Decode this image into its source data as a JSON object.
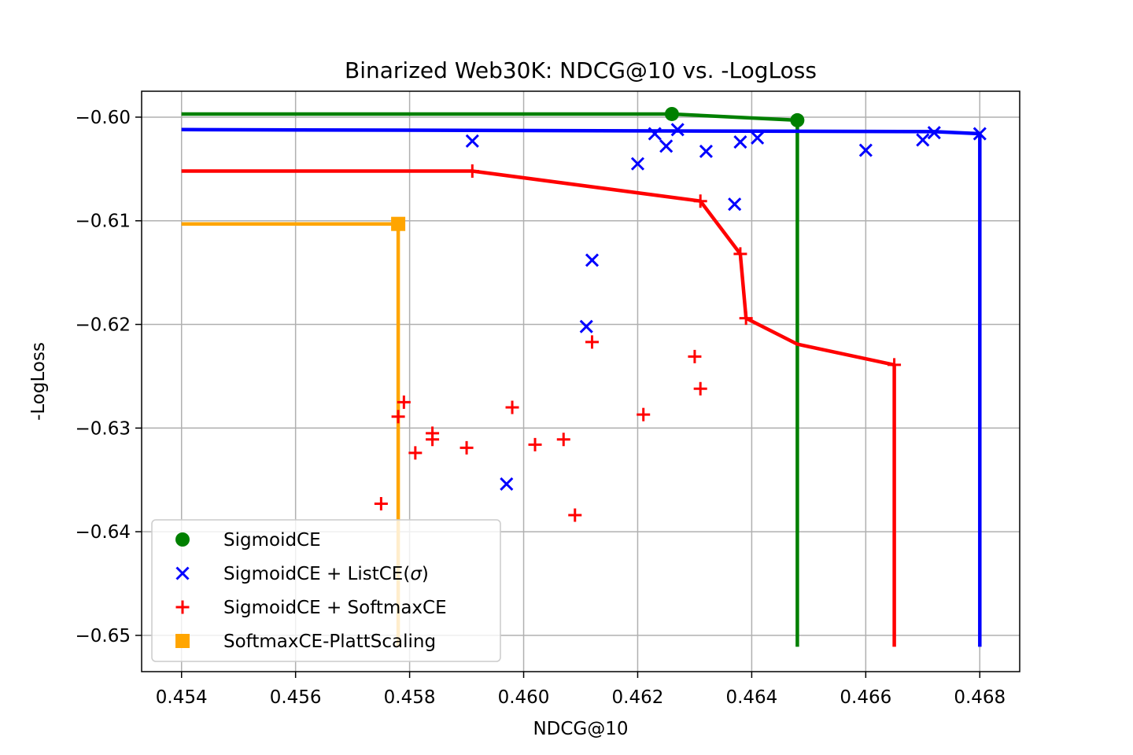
{
  "chart_data": {
    "type": "scatter",
    "title": "Binarized Web30K: NDCG@10 vs. -LogLoss",
    "xlabel": "NDCG@10",
    "ylabel": "-LogLoss",
    "xlim": [
      0.4533,
      0.4687
    ],
    "ylim": [
      -0.6535,
      -0.5975
    ],
    "x_ticks": [
      0.454,
      0.456,
      0.458,
      0.46,
      0.462,
      0.464,
      0.466,
      0.468
    ],
    "x_tick_labels": [
      "0.454",
      "0.456",
      "0.458",
      "0.460",
      "0.462",
      "0.464",
      "0.466",
      "0.468"
    ],
    "y_ticks": [
      -0.6,
      -0.61,
      -0.62,
      -0.63,
      -0.64,
      -0.65
    ],
    "y_tick_labels": [
      "−0.60",
      "−0.61",
      "−0.62",
      "−0.63",
      "−0.64",
      "−0.65"
    ],
    "grid": true,
    "legend_position": "lower-left",
    "series": [
      {
        "name": "SigmoidCE",
        "marker": "circle",
        "color": "#008000",
        "points": [
          [
            0.4626,
            -0.5997
          ],
          [
            0.4648,
            -0.6003
          ]
        ],
        "frontier": [
          [
            0.454,
            -0.5997
          ],
          [
            0.4626,
            -0.5997
          ],
          [
            0.4648,
            -0.6003
          ],
          [
            0.4648,
            -0.6511
          ]
        ]
      },
      {
        "name_prefix": "SigmoidCE + ListCE(",
        "name_symbol": "σ",
        "name_suffix": ")",
        "marker": "x",
        "color": "#0000ff",
        "points": [
          [
            0.4591,
            -0.6023
          ],
          [
            0.462,
            -0.6045
          ],
          [
            0.4623,
            -0.6016
          ],
          [
            0.4625,
            -0.6028
          ],
          [
            0.4627,
            -0.6012
          ],
          [
            0.4632,
            -0.6033
          ],
          [
            0.4637,
            -0.6084
          ],
          [
            0.4638,
            -0.6024
          ],
          [
            0.4641,
            -0.602
          ],
          [
            0.4612,
            -0.6138
          ],
          [
            0.4611,
            -0.6202
          ],
          [
            0.4597,
            -0.6354
          ],
          [
            0.466,
            -0.6032
          ],
          [
            0.467,
            -0.6022
          ],
          [
            0.4672,
            -0.6015
          ],
          [
            0.468,
            -0.6016
          ]
        ],
        "frontier": [
          [
            0.454,
            -0.6012
          ],
          [
            0.4672,
            -0.6014
          ],
          [
            0.468,
            -0.6016
          ],
          [
            0.468,
            -0.6511
          ]
        ]
      },
      {
        "name": "SigmoidCE + SoftmaxCE",
        "marker": "plus",
        "color": "#ff0000",
        "points": [
          [
            0.4591,
            -0.6052
          ],
          [
            0.4631,
            -0.6081
          ],
          [
            0.4638,
            -0.6132
          ],
          [
            0.4639,
            -0.6194
          ],
          [
            0.4665,
            -0.6239
          ],
          [
            0.4612,
            -0.6217
          ],
          [
            0.463,
            -0.6231
          ],
          [
            0.4631,
            -0.6262
          ],
          [
            0.4621,
            -0.6287
          ],
          [
            0.4598,
            -0.628
          ],
          [
            0.4579,
            -0.6275
          ],
          [
            0.4578,
            -0.6289
          ],
          [
            0.4584,
            -0.6305
          ],
          [
            0.4584,
            -0.6311
          ],
          [
            0.4581,
            -0.6324
          ],
          [
            0.459,
            -0.6319
          ],
          [
            0.4602,
            -0.6316
          ],
          [
            0.4607,
            -0.6311
          ],
          [
            0.4575,
            -0.6373
          ],
          [
            0.4609,
            -0.6384
          ]
        ],
        "frontier": [
          [
            0.454,
            -0.6052
          ],
          [
            0.4591,
            -0.6052
          ],
          [
            0.4631,
            -0.6081
          ],
          [
            0.4638,
            -0.6132
          ],
          [
            0.4639,
            -0.6194
          ],
          [
            0.4648,
            -0.6219
          ],
          [
            0.4665,
            -0.6239
          ],
          [
            0.4665,
            -0.6511
          ]
        ]
      },
      {
        "name": "SoftmaxCE-PlattScaling",
        "marker": "square",
        "color": "#ffa500",
        "points": [
          [
            0.4578,
            -0.6103
          ]
        ],
        "frontier": [
          [
            0.454,
            -0.6103
          ],
          [
            0.4578,
            -0.6103
          ],
          [
            0.4578,
            -0.6511
          ]
        ]
      }
    ]
  }
}
